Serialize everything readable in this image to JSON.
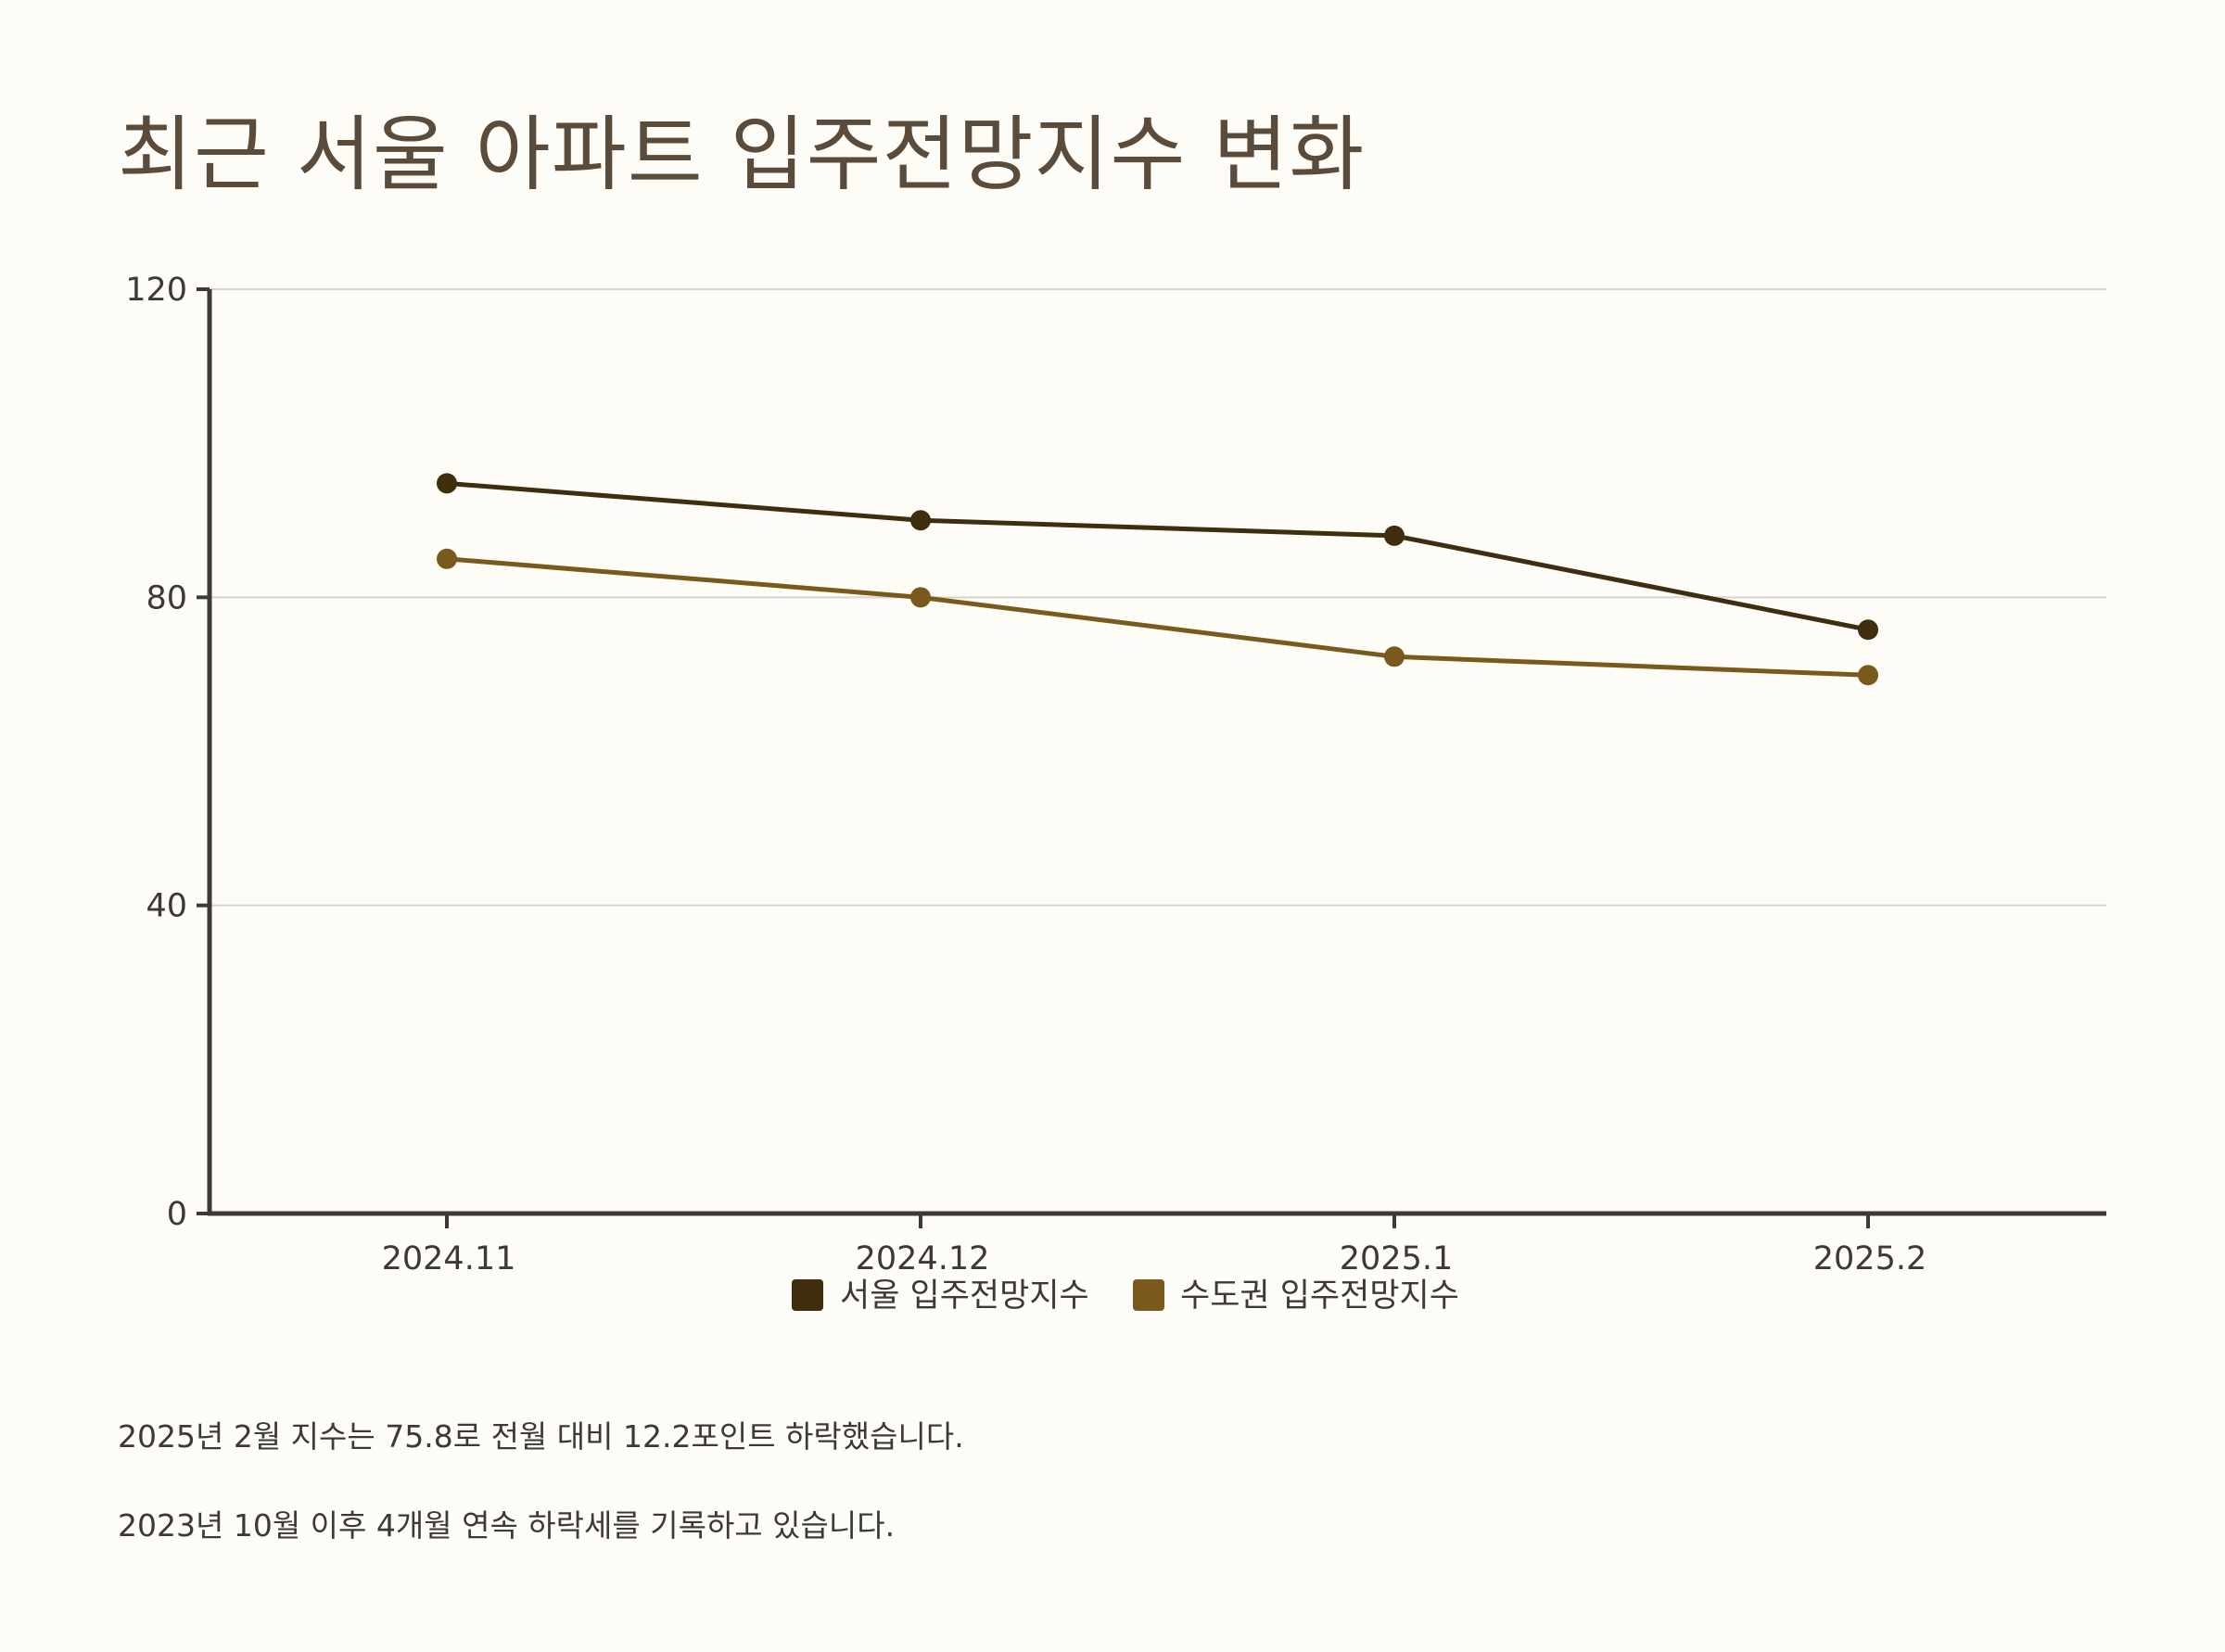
{
  "title": "최근 서울 아파트 입주전망지수 변화",
  "notes": [
    "2025년 2월 지수는 75.8로 전월 대비 12.2포인트 하락했습니다.",
    "2023년 10월 이후 4개월 연속 하락세를 기록하고 있습니다."
  ],
  "colors": {
    "seoul": "#3f2e0e",
    "capital": "#7a5a1c",
    "axis": "#3d3a34",
    "grid": "#d6d4cc"
  },
  "chart_data": {
    "type": "line",
    "title": "최근 서울 아파트 입주전망지수 변화",
    "xlabel": "",
    "ylabel": "",
    "categories": [
      "2024.11",
      "2024.12",
      "2025.1",
      "2025.2"
    ],
    "ylim": [
      0,
      120
    ],
    "yticks": [
      0,
      40,
      80,
      120
    ],
    "grid": true,
    "legend_position": "bottom-center",
    "series": [
      {
        "name": "서울 입주전망지수",
        "color": "#3f2e0e",
        "values": [
          94.8,
          90.0,
          88.0,
          75.8
        ]
      },
      {
        "name": "수도권 입주전망지수",
        "color": "#7a5a1c",
        "values": [
          85.0,
          80.0,
          72.3,
          69.9
        ]
      }
    ]
  }
}
